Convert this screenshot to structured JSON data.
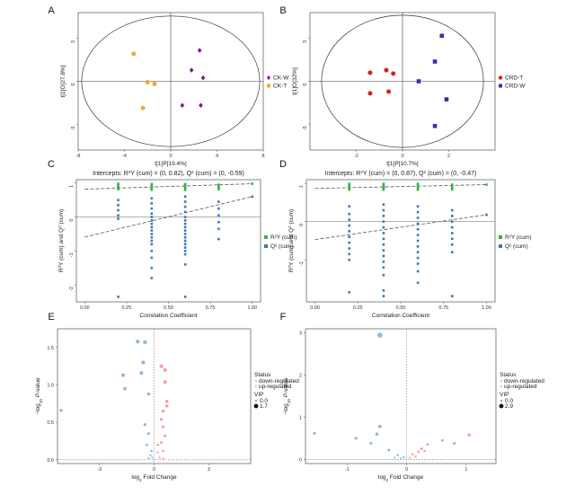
{
  "chart_data": [
    {
      "panel": "A",
      "type": "scatter",
      "xlabel": "t[1]P[19.4%]",
      "ylabel": "t[1]O[27.8%]",
      "xlim": [
        -8,
        8
      ],
      "ylim": [
        -8,
        8
      ],
      "xticks": [
        "-8",
        "-4",
        "0",
        "4",
        "8"
      ],
      "yticks": [
        "-5",
        "0",
        "5"
      ],
      "ellipse": {
        "rx": 7.7,
        "ry": 7.6
      },
      "legend_position": "right",
      "series": [
        {
          "name": "CK-W",
          "color": "#7a1a84",
          "marker": "diamond",
          "points": [
            [
              2.5,
              3.6
            ],
            [
              1.8,
              1.3
            ],
            [
              2.8,
              0.4
            ],
            [
              2.6,
              -2.8
            ],
            [
              1.0,
              -2.8
            ]
          ]
        },
        {
          "name": "CK-T",
          "color": "#f0a830",
          "marker": "circle",
          "points": [
            [
              -3.2,
              3.2
            ],
            [
              -2.0,
              -0.1
            ],
            [
              -1.4,
              -0.3
            ],
            [
              -2.4,
              -3.1
            ]
          ]
        }
      ]
    },
    {
      "panel": "B",
      "type": "scatter",
      "xlabel": "t[1]P[10.7%]",
      "ylabel": "t[1]O[32%]",
      "xlim": [
        -4,
        4
      ],
      "ylim": [
        -8,
        8
      ],
      "xticks": [
        "-2",
        "0",
        "2"
      ],
      "yticks": [
        "-5",
        "0",
        "5"
      ],
      "ellipse": {
        "rx": 3.5,
        "ry": 7.7
      },
      "legend_position": "right",
      "series": [
        {
          "name": "CRD-T",
          "color": "#d42020",
          "marker": "circle",
          "points": [
            [
              -1.4,
              1.0
            ],
            [
              -0.7,
              1.3
            ],
            [
              -0.4,
              0.9
            ],
            [
              -1.4,
              -1.4
            ],
            [
              -0.6,
              -1.2
            ]
          ]
        },
        {
          "name": "CRD-W",
          "color": "#3a2ac0",
          "marker": "square",
          "points": [
            [
              1.7,
              5.3
            ],
            [
              1.4,
              2.3
            ],
            [
              0.7,
              0.0
            ],
            [
              1.9,
              -2.1
            ],
            [
              1.4,
              -5.2
            ]
          ]
        }
      ]
    },
    {
      "panel": "C",
      "type": "scatter",
      "title": "Intercepts: R²Y (cum) = (0, 0.82), Q² (cum) = (0, -0.59)",
      "xlabel": "Correlation Coefficient",
      "ylabel": "R²Y (cum) and Q² (cum)",
      "xlim": [
        -0.05,
        1.05
      ],
      "ylim": [
        -2.5,
        1.1
      ],
      "xticks": [
        "0.00",
        "0.25",
        "0.50",
        "0.75",
        "1.00"
      ],
      "yticks": [
        "-2",
        "-1",
        "0",
        "1"
      ],
      "legend_position": "right",
      "series": [
        {
          "name": "R²Y (cum)",
          "color": "#38b04a",
          "x": [
            0.2,
            0.2,
            0.2,
            0.2,
            0.2,
            0.4,
            0.4,
            0.4,
            0.4,
            0.4,
            0.6,
            0.6,
            0.6,
            0.6,
            0.6,
            0.8,
            0.8,
            0.8,
            0.8,
            1.0
          ],
          "y": [
            0.82,
            0.86,
            0.9,
            0.94,
            0.98,
            0.8,
            0.85,
            0.89,
            0.93,
            0.97,
            0.8,
            0.84,
            0.88,
            0.93,
            0.97,
            0.82,
            0.86,
            0.9,
            0.95,
            0.98
          ]
        },
        {
          "name": "Q² (cum)",
          "color": "#3a78b8",
          "x": [
            0.2,
            0.2,
            0.2,
            0.2,
            0.2,
            0.2,
            0.4,
            0.4,
            0.4,
            0.4,
            0.4,
            0.4,
            0.4,
            0.4,
            0.4,
            0.4,
            0.4,
            0.4,
            0.4,
            0.4,
            0.4,
            0.4,
            0.4,
            0.6,
            0.6,
            0.6,
            0.6,
            0.6,
            0.6,
            0.6,
            0.6,
            0.6,
            0.6,
            0.6,
            0.6,
            0.6,
            0.6,
            0.6,
            0.6,
            0.6,
            0.6,
            0.8,
            0.8,
            0.8,
            0.8,
            0.8,
            0.8,
            1.0
          ],
          "y": [
            0.5,
            0.35,
            0.2,
            0.05,
            -0.05,
            -2.35,
            0.55,
            0.4,
            0.25,
            0.1,
            0.0,
            -0.1,
            -0.2,
            -0.3,
            -0.4,
            -0.5,
            -0.6,
            -0.7,
            -0.8,
            -1.0,
            -1.2,
            -1.5,
            -1.8,
            0.6,
            0.45,
            0.3,
            0.15,
            0.0,
            -0.1,
            -0.2,
            -0.3,
            -0.4,
            -0.5,
            -0.6,
            -0.7,
            -0.8,
            -0.9,
            -1.0,
            -1.1,
            -1.4,
            -2.35,
            0.45,
            0.25,
            0.05,
            -0.15,
            -0.35,
            -0.65,
            0.6
          ]
        }
      ],
      "regression_lines": [
        {
          "series": "R²Y (cum)",
          "intercept": 0.82,
          "y_at_1": 0.98
        },
        {
          "series": "Q² (cum)",
          "intercept": -0.59,
          "y_at_1": 0.6
        }
      ]
    },
    {
      "panel": "D",
      "type": "scatter",
      "title": "Intercepts: R²Y (cum) = (0, 0.87), Q² (cum) = (0, -0.47)",
      "xlabel": "Correlation Coefficient",
      "ylabel": "R²Y (cum) and Q² (cum)",
      "xlim": [
        -0.05,
        1.05
      ],
      "ylim": [
        -2.1,
        1.1
      ],
      "xticks": [
        "0.00",
        "0.25",
        "0.50",
        "0.75",
        "1.00"
      ],
      "yticks": [
        "-1",
        "0",
        "1"
      ],
      "legend_position": "right",
      "series": [
        {
          "name": "R²Y (cum)",
          "color": "#38b04a",
          "x": [
            0.2,
            0.2,
            0.2,
            0.2,
            0.2,
            0.4,
            0.4,
            0.4,
            0.4,
            0.4,
            0.6,
            0.6,
            0.6,
            0.6,
            0.6,
            0.8,
            0.8,
            0.8,
            0.8,
            1.0
          ],
          "y": [
            0.84,
            0.88,
            0.92,
            0.96,
            0.99,
            0.84,
            0.87,
            0.91,
            0.95,
            0.99,
            0.84,
            0.88,
            0.92,
            0.95,
            0.99,
            0.85,
            0.89,
            0.93,
            0.97,
            0.97
          ]
        },
        {
          "name": "Q² (cum)",
          "color": "#3a78b8",
          "x": [
            0.2,
            0.2,
            0.2,
            0.2,
            0.2,
            0.2,
            0.2,
            0.2,
            0.2,
            0.2,
            0.2,
            0.4,
            0.4,
            0.4,
            0.4,
            0.4,
            0.4,
            0.4,
            0.4,
            0.4,
            0.4,
            0.4,
            0.4,
            0.4,
            0.4,
            0.4,
            0.6,
            0.6,
            0.6,
            0.6,
            0.6,
            0.6,
            0.6,
            0.6,
            0.6,
            0.6,
            0.6,
            0.6,
            0.6,
            0.8,
            0.8,
            0.8,
            0.8,
            0.8,
            0.8,
            0.8,
            0.8,
            0.8,
            1.0
          ],
          "y": [
            0.4,
            0.2,
            0.05,
            -0.1,
            -0.25,
            -0.4,
            -0.55,
            -0.7,
            -0.85,
            -1.0,
            -1.85,
            0.45,
            0.3,
            0.15,
            0.0,
            -0.15,
            -0.3,
            -0.45,
            -0.6,
            -0.75,
            -0.9,
            -1.05,
            -1.2,
            -1.4,
            -1.8,
            -1.95,
            0.4,
            0.25,
            0.1,
            -0.05,
            -0.2,
            -0.35,
            -0.5,
            -0.65,
            -0.8,
            -0.95,
            -1.1,
            -1.3,
            -1.6,
            0.3,
            0.15,
            0.0,
            -0.15,
            -0.3,
            -0.45,
            -0.6,
            -0.8,
            -1.95,
            0.18
          ]
        }
      ],
      "regression_lines": [
        {
          "series": "R²Y (cum)",
          "intercept": 0.87,
          "y_at_1": 0.97
        },
        {
          "series": "Q² (cum)",
          "intercept": -0.47,
          "y_at_1": 0.18
        }
      ]
    },
    {
      "panel": "E",
      "type": "scatter",
      "xlabel": "log2 Fold Change",
      "ylabel": "-log10 P-value",
      "xlim": [
        -5.3,
        5.3
      ],
      "ylim": [
        -0.05,
        1.75
      ],
      "xticks": [
        "-3",
        "0",
        "3"
      ],
      "yticks": [
        "0.0",
        "0.5",
        "1.0",
        "1.5"
      ],
      "legend": {
        "status_title": "Status",
        "status": [
          "down-regulated",
          "up-regulated"
        ],
        "vip_title": "VIP",
        "vip": [
          "0.0",
          "1.7"
        ]
      },
      "legend_position": "right",
      "series": [
        {
          "name": "down-regulated",
          "color": "#8fb8e0",
          "points": [
            [
              -0.9,
              1.58
            ],
            [
              -0.5,
              1.57
            ],
            [
              -0.6,
              1.3
            ],
            [
              -0.7,
              1.16
            ],
            [
              -1.7,
              1.13
            ],
            [
              -1.6,
              0.95
            ],
            [
              -0.3,
              0.88
            ],
            [
              -5.1,
              0.66
            ],
            [
              -0.5,
              0.47
            ],
            [
              -0.3,
              0.35
            ],
            [
              -0.4,
              0.2
            ],
            [
              -0.15,
              0.12
            ],
            [
              -0.2,
              0.06
            ],
            [
              -0.1,
              0.03
            ],
            [
              -0.3,
              0.02
            ]
          ],
          "sizes": [
            1.5,
            1.6,
            1.5,
            1.4,
            1.3,
            1.2,
            1.1,
            1.0,
            0.9,
            0.8,
            0.7,
            0.5,
            0.4,
            0.3,
            0.3
          ]
        },
        {
          "name": "up-regulated",
          "color": "#f0a0a0",
          "points": [
            [
              0.4,
              1.25
            ],
            [
              0.6,
              1.2
            ],
            [
              0.6,
              1.04
            ],
            [
              0.7,
              0.78
            ],
            [
              0.7,
              0.72
            ],
            [
              0.5,
              0.65
            ],
            [
              0.4,
              0.54
            ],
            [
              0.5,
              0.44
            ],
            [
              0.6,
              0.32
            ],
            [
              0.4,
              0.23
            ],
            [
              0.2,
              0.2
            ],
            [
              0.5,
              0.12
            ],
            [
              0.2,
              0.1
            ],
            [
              0.3,
              0.03
            ],
            [
              0.5,
              0.02
            ]
          ],
          "sizes": [
            1.4,
            1.4,
            1.3,
            1.1,
            1.0,
            1.0,
            0.9,
            0.9,
            0.8,
            0.7,
            0.6,
            0.5,
            0.4,
            0.3,
            0.3
          ]
        }
      ]
    },
    {
      "panel": "F",
      "type": "scatter",
      "xlabel": "log2 Fold Change",
      "ylabel": "-log10 P-value",
      "xlim": [
        -1.7,
        1.5
      ],
      "ylim": [
        -0.1,
        3.1
      ],
      "xticks": [
        "-1",
        "0",
        "1"
      ],
      "yticks": [
        "0",
        "1",
        "2",
        "3"
      ],
      "legend": {
        "status_title": "Status",
        "status": [
          "down-regulated",
          "up-regulated"
        ],
        "vip_title": "VIP",
        "vip": [
          "0.0",
          "2.9"
        ]
      },
      "legend_position": "right",
      "series": [
        {
          "name": "down-regulated",
          "color": "#8fb8e0",
          "points": [
            [
              -0.45,
              2.95
            ],
            [
              -0.45,
              0.78
            ],
            [
              -0.5,
              0.6
            ],
            [
              -0.85,
              0.5
            ],
            [
              -1.55,
              0.62
            ],
            [
              -0.6,
              0.38
            ],
            [
              -0.3,
              0.22
            ],
            [
              -0.15,
              0.1
            ],
            [
              -0.05,
              0.05
            ],
            [
              -0.1,
              0.02
            ],
            [
              -0.2,
              0.04
            ]
          ],
          "sizes": [
            2.2,
            1.2,
            1.0,
            0.9,
            0.9,
            0.8,
            0.7,
            0.5,
            0.4,
            0.3,
            0.3
          ]
        },
        {
          "name": "up-regulated",
          "color": "#f0a0a0",
          "points": [
            [
              1.05,
              0.58
            ],
            [
              0.8,
              0.38
            ],
            [
              0.6,
              0.45
            ],
            [
              0.35,
              0.35
            ],
            [
              0.25,
              0.25
            ],
            [
              0.2,
              0.18
            ],
            [
              0.1,
              0.12
            ],
            [
              0.15,
              0.07
            ],
            [
              0.05,
              0.04
            ],
            [
              0.3,
              0.2
            ]
          ],
          "sizes": [
            1.0,
            0.9,
            0.8,
            0.8,
            0.7,
            0.6,
            0.5,
            0.4,
            0.3,
            0.5
          ]
        }
      ]
    }
  ]
}
